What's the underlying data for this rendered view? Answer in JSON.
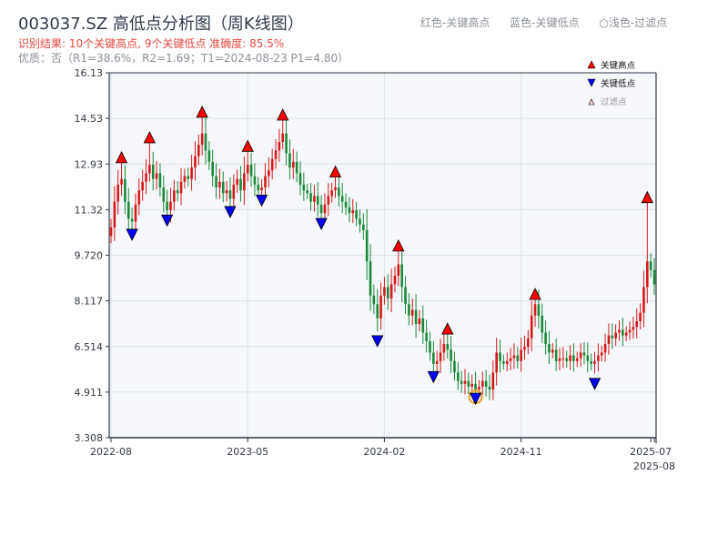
{
  "header": {
    "title": "003037.SZ 高低点分析图（周K线图）",
    "result": "识别结果: 10个关键高点, 9个关键低点  准确度: 85.5%",
    "quality": "优质：否（R1=38.6%，R2=1.69；T1=2024-08-23 P1=4.80）",
    "legend_top": [
      "红色-关键高点",
      "蓝色-关键低点",
      "○浅色-过滤点"
    ]
  },
  "colors": {
    "up": "#d7191c",
    "down": "#1a8a3a",
    "high": "#ff0000",
    "low": "#0000ff",
    "filtered": "#f0a020",
    "bg": "#f5f7fa",
    "grid": "#dde2e8",
    "axis": "#2e3a4a"
  },
  "chart_data": {
    "type": "candlestick",
    "title": "003037.SZ 高低点分析图（周K线图）",
    "ylim": [
      3.308,
      16.13
    ],
    "yticks": [
      "16.13",
      "14.53",
      "12.93",
      "11.32",
      "9.720",
      "8.117",
      "6.514",
      "4.911",
      "3.308"
    ],
    "xticks": [
      {
        "label": "2022-08",
        "week": 0
      },
      {
        "label": "2023-05",
        "week": 39
      },
      {
        "label": "2024-02",
        "week": 78
      },
      {
        "label": "2024-11",
        "week": 117
      },
      {
        "label": "2025-07",
        "week": 154
      },
      {
        "label": "2025-08",
        "week": 155
      }
    ],
    "legend": [
      "关键高点",
      "关键低点",
      "过滤点"
    ],
    "legend_placement": "top-right",
    "closes": [
      10.7,
      11.6,
      12.2,
      12.4,
      11.6,
      11.0,
      10.9,
      11.5,
      12.0,
      12.3,
      12.6,
      12.9,
      12.4,
      12.6,
      12.1,
      11.6,
      11.3,
      11.6,
      12.0,
      11.9,
      12.3,
      12.5,
      12.4,
      12.8,
      13.2,
      13.6,
      14.0,
      13.4,
      13.0,
      12.5,
      12.1,
      12.3,
      11.9,
      12.0,
      11.7,
      12.2,
      12.4,
      12.0,
      12.6,
      12.9,
      12.5,
      12.2,
      12.0,
      12.1,
      12.5,
      12.7,
      13.1,
      13.4,
      13.7,
      14.0,
      13.3,
      12.8,
      13.0,
      12.6,
      12.2,
      12.0,
      11.9,
      11.6,
      11.8,
      11.5,
      11.2,
      11.5,
      11.8,
      12.0,
      12.1,
      11.8,
      11.6,
      11.4,
      11.2,
      11.3,
      11.0,
      10.8,
      10.6,
      9.5,
      8.3,
      8.0,
      7.5,
      8.3,
      8.6,
      8.2,
      8.7,
      9.0,
      9.4,
      8.6,
      8.0,
      7.6,
      7.8,
      7.3,
      7.5,
      7.0,
      6.7,
      6.3,
      5.9,
      6.0,
      6.3,
      6.6,
      6.4,
      6.0,
      5.6,
      5.3,
      5.2,
      5.3,
      5.1,
      5.2,
      5.0,
      5.1,
      5.3,
      5.1,
      5.0,
      5.6,
      6.3,
      6.0,
      5.9,
      6.0,
      6.1,
      6.2,
      6.0,
      6.4,
      6.5,
      6.8,
      7.6,
      8.0,
      7.6,
      7.0,
      6.6,
      6.3,
      6.4,
      6.0,
      6.1,
      6.1,
      6.0,
      6.2,
      6.0,
      6.1,
      6.3,
      6.2,
      6.0,
      5.9,
      6.0,
      6.2,
      6.3,
      6.6,
      6.9,
      6.8,
      7.0,
      7.1,
      6.9,
      7.0,
      7.1,
      7.2,
      7.4,
      7.7,
      8.6,
      9.5,
      9.2,
      8.7
    ],
    "highs": [
      {
        "week": 3,
        "price": 13.0
      },
      {
        "week": 11,
        "price": 13.7
      },
      {
        "week": 26,
        "price": 14.6
      },
      {
        "week": 39,
        "price": 13.4
      },
      {
        "week": 49,
        "price": 14.5
      },
      {
        "week": 64,
        "price": 12.5
      },
      {
        "week": 82,
        "price": 9.9
      },
      {
        "week": 96,
        "price": 6.98
      },
      {
        "week": 121,
        "price": 8.2
      },
      {
        "week": 153,
        "price": 11.6
      }
    ],
    "lows": [
      {
        "week": 6,
        "price": 10.6
      },
      {
        "week": 16,
        "price": 11.1
      },
      {
        "week": 34,
        "price": 11.4
      },
      {
        "week": 43,
        "price": 11.8
      },
      {
        "week": 60,
        "price": 10.98
      },
      {
        "week": 76,
        "price": 6.86
      },
      {
        "week": 92,
        "price": 5.6
      },
      {
        "week": 104,
        "price": 4.84
      },
      {
        "week": 138,
        "price": 5.36
      }
    ],
    "filtered": [
      {
        "week": 104,
        "price": 4.84
      }
    ]
  }
}
